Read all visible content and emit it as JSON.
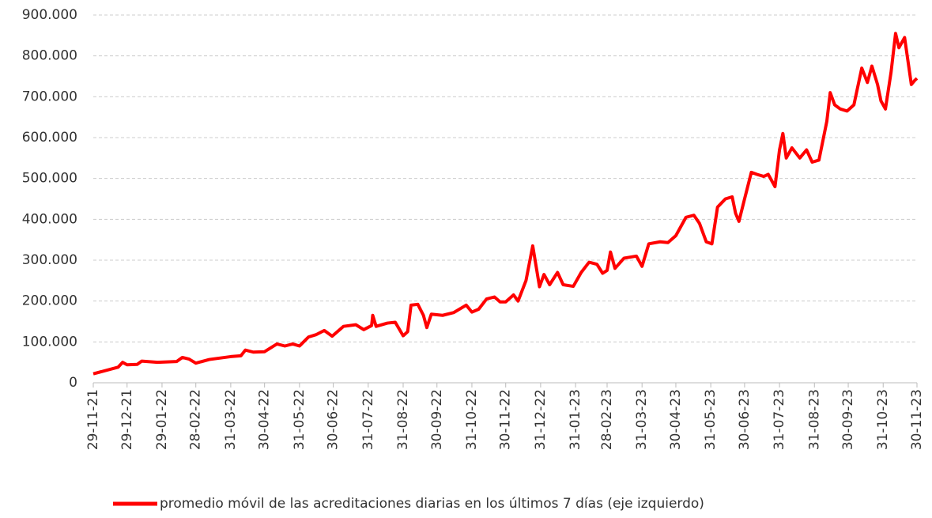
{
  "chart_data": {
    "type": "line",
    "x": [
      "2021-11-29",
      "2021-12-21",
      "2021-12-25",
      "2021-12-29",
      "2022-01-07",
      "2022-01-11",
      "2022-01-25",
      "2022-02-11",
      "2022-02-16",
      "2022-02-22",
      "2022-02-28",
      "2022-03-12",
      "2022-03-31",
      "2022-04-09",
      "2022-04-13",
      "2022-04-20",
      "2022-04-30",
      "2022-05-11",
      "2022-05-18",
      "2022-05-25",
      "2022-05-31",
      "2022-06-08",
      "2022-06-15",
      "2022-06-22",
      "2022-06-29",
      "2022-07-09",
      "2022-07-20",
      "2022-07-27",
      "2022-08-03",
      "2022-08-04",
      "2022-08-07",
      "2022-08-17",
      "2022-08-24",
      "2022-08-31",
      "2022-09-04",
      "2022-09-07",
      "2022-09-13",
      "2022-09-18",
      "2022-09-21",
      "2022-09-25",
      "2022-10-05",
      "2022-10-15",
      "2022-10-26",
      "2022-10-31",
      "2022-11-06",
      "2022-11-13",
      "2022-11-20",
      "2022-11-25",
      "2022-11-30",
      "2022-12-07",
      "2022-12-11",
      "2022-12-18",
      "2022-12-24",
      "2022-12-30",
      "2023-01-03",
      "2023-01-08",
      "2023-01-15",
      "2023-01-20",
      "2023-01-29",
      "2023-02-05",
      "2023-02-12",
      "2023-02-19",
      "2023-02-24",
      "2023-02-28",
      "2023-03-03",
      "2023-03-07",
      "2023-03-15",
      "2023-03-26",
      "2023-03-31",
      "2023-04-06",
      "2023-04-16",
      "2023-04-23",
      "2023-04-30",
      "2023-05-09",
      "2023-05-16",
      "2023-05-21",
      "2023-05-27",
      "2023-06-01",
      "2023-06-06",
      "2023-06-13",
      "2023-06-19",
      "2023-06-22",
      "2023-06-25",
      "2023-06-30",
      "2023-07-06",
      "2023-07-11",
      "2023-07-17",
      "2023-07-21",
      "2023-07-27",
      "2023-07-31",
      "2023-08-03",
      "2023-08-06",
      "2023-08-11",
      "2023-08-18",
      "2023-08-24",
      "2023-08-29",
      "2023-09-04",
      "2023-09-11",
      "2023-09-14",
      "2023-09-18",
      "2023-09-23",
      "2023-09-29",
      "2023-10-05",
      "2023-10-12",
      "2023-10-17",
      "2023-10-21",
      "2023-10-26",
      "2023-10-29",
      "2023-11-02",
      "2023-11-07",
      "2023-11-11",
      "2023-11-14",
      "2023-11-19",
      "2023-11-25",
      "2023-11-28",
      "2023-11-30"
    ],
    "series": [
      {
        "name": "promedio móvil de las acreditaciones diarias en los últimos 7 días (eje izquierdo)",
        "color": "#ff0000",
        "values": [
          22000,
          38000,
          50000,
          44000,
          45000,
          53000,
          50000,
          52000,
          62000,
          58000,
          48000,
          57000,
          64000,
          66000,
          80000,
          75000,
          76000,
          95000,
          90000,
          95000,
          90000,
          112000,
          118000,
          128000,
          114000,
          138000,
          142000,
          130000,
          140000,
          165000,
          138000,
          146000,
          148000,
          115000,
          125000,
          190000,
          192000,
          165000,
          135000,
          168000,
          165000,
          172000,
          190000,
          173000,
          180000,
          205000,
          210000,
          198000,
          198000,
          215000,
          200000,
          250000,
          335000,
          235000,
          265000,
          240000,
          270000,
          240000,
          236000,
          270000,
          295000,
          290000,
          268000,
          275000,
          320000,
          280000,
          305000,
          310000,
          285000,
          340000,
          345000,
          343000,
          360000,
          405000,
          410000,
          390000,
          345000,
          340000,
          430000,
          450000,
          455000,
          415000,
          395000,
          450000,
          515000,
          510000,
          505000,
          510000,
          480000,
          570000,
          610000,
          550000,
          575000,
          550000,
          570000,
          540000,
          545000,
          640000,
          710000,
          680000,
          670000,
          665000,
          680000,
          770000,
          735000,
          775000,
          730000,
          690000,
          670000,
          760000,
          855000,
          820000,
          845000,
          730000,
          740000,
          745000
        ]
      }
    ],
    "xlim": [
      "2021-11-29",
      "2023-11-30"
    ],
    "xticks": [
      {
        "value": "2021-11-29",
        "label": "29-11-21"
      },
      {
        "value": "2021-12-29",
        "label": "29-12-21"
      },
      {
        "value": "2022-01-29",
        "label": "29-01-22"
      },
      {
        "value": "2022-02-28",
        "label": "28-02-22"
      },
      {
        "value": "2022-03-31",
        "label": "31-03-22"
      },
      {
        "value": "2022-04-30",
        "label": "30-04-22"
      },
      {
        "value": "2022-05-31",
        "label": "31-05-22"
      },
      {
        "value": "2022-06-30",
        "label": "30-06-22"
      },
      {
        "value": "2022-07-31",
        "label": "31-07-22"
      },
      {
        "value": "2022-08-31",
        "label": "31-08-22"
      },
      {
        "value": "2022-09-30",
        "label": "30-09-22"
      },
      {
        "value": "2022-10-31",
        "label": "31-10-22"
      },
      {
        "value": "2022-11-30",
        "label": "30-11-22"
      },
      {
        "value": "2022-12-31",
        "label": "31-12-22"
      },
      {
        "value": "2023-01-31",
        "label": "31-01-23"
      },
      {
        "value": "2023-02-28",
        "label": "28-02-23"
      },
      {
        "value": "2023-03-31",
        "label": "31-03-23"
      },
      {
        "value": "2023-04-30",
        "label": "30-04-23"
      },
      {
        "value": "2023-05-31",
        "label": "31-05-23"
      },
      {
        "value": "2023-06-30",
        "label": "30-06-23"
      },
      {
        "value": "2023-07-31",
        "label": "31-07-23"
      },
      {
        "value": "2023-08-31",
        "label": "31-08-23"
      },
      {
        "value": "2023-09-30",
        "label": "30-09-23"
      },
      {
        "value": "2023-10-31",
        "label": "31-10-23"
      },
      {
        "value": "2023-11-30",
        "label": "30-11-23"
      }
    ],
    "ylim": [
      0,
      900000
    ],
    "yticks": [
      0,
      {
        "value": 100000,
        "label": "100.000"
      },
      {
        "value": 200000,
        "label": "200.000"
      },
      {
        "value": 300000,
        "label": "300.000"
      },
      {
        "value": 400000,
        "label": "400.000"
      },
      {
        "value": 500000,
        "label": "500.000"
      },
      {
        "value": 600000,
        "label": "600.000"
      },
      {
        "value": 700000,
        "label": "700.000"
      },
      {
        "value": 800000,
        "label": "800.000"
      },
      {
        "value": 900000,
        "label": "900.000"
      }
    ],
    "grid": true,
    "legend": "bottom"
  }
}
